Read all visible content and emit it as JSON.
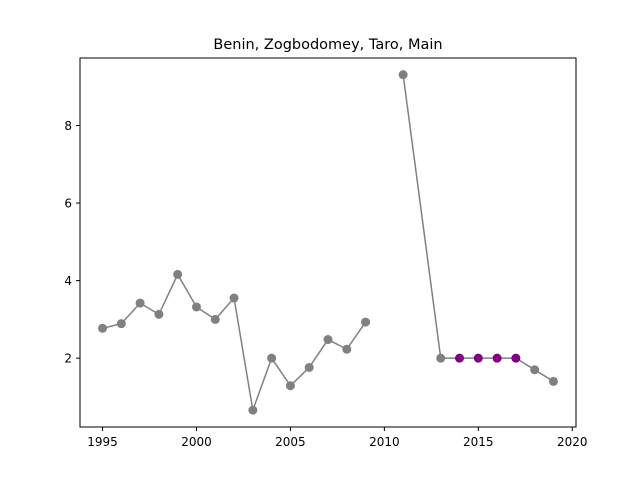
{
  "chart_data": {
    "type": "line",
    "title": "Benin, Zogbodomey, Taro, Main",
    "xlabel": "",
    "ylabel": "",
    "xlim": [
      1993.8,
      2020.2
    ],
    "ylim": [
      0.225,
      9.74
    ],
    "xticks": [
      1995,
      2000,
      2005,
      2010,
      2015,
      2020
    ],
    "yticks": [
      2,
      4,
      6,
      8
    ],
    "grid": false,
    "line_color": "#808080",
    "segments": [
      {
        "x": [
          1995,
          1996,
          1997,
          1998,
          1999,
          2000,
          2001,
          2002,
          2003,
          2004,
          2005,
          2006,
          2007,
          2008,
          2009
        ],
        "y": [
          2.77,
          2.89,
          3.42,
          3.13,
          4.16,
          3.32,
          3.0,
          3.55,
          0.66,
          2.0,
          1.29,
          1.76,
          2.48,
          2.23,
          2.93
        ]
      },
      {
        "x": [
          2011,
          2013,
          2014,
          2015,
          2016,
          2017,
          2018,
          2019
        ],
        "y": [
          9.31,
          2.0,
          2.0,
          2.0,
          2.0,
          2.0,
          1.7,
          1.4
        ]
      }
    ],
    "highlight": {
      "color": "#800080",
      "x": [
        2014,
        2015,
        2016,
        2017
      ],
      "y": [
        2.0,
        2.0,
        2.0,
        2.0
      ]
    }
  }
}
